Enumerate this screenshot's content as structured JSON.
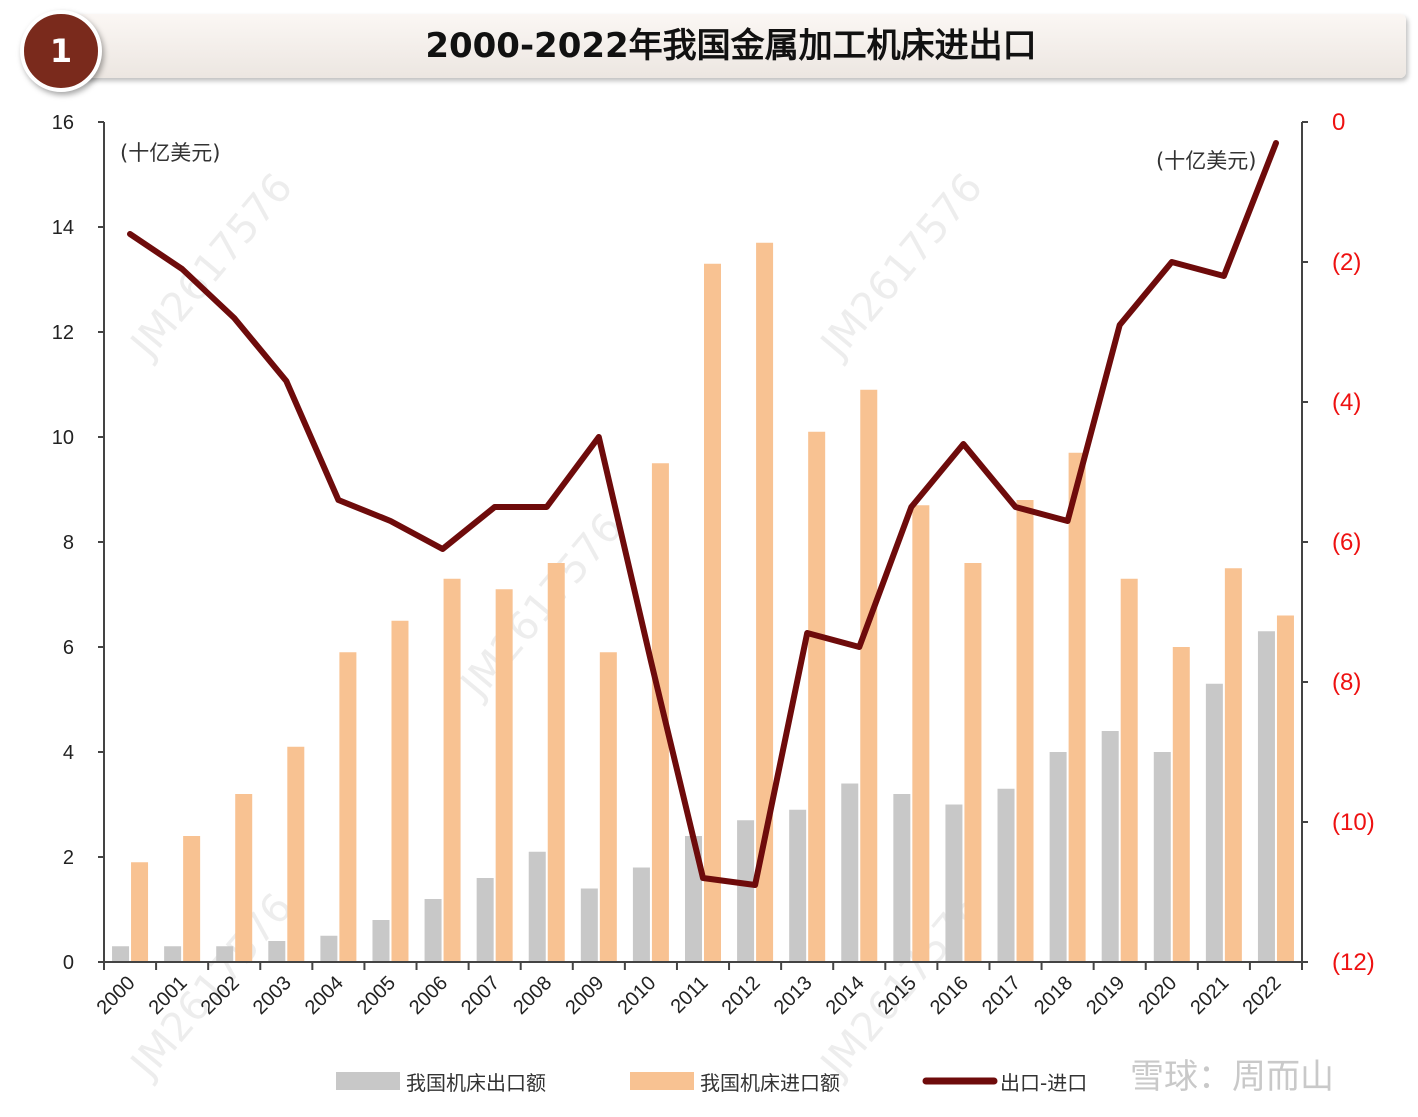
{
  "header": {
    "number": "1",
    "title": "2000-2022年我国金属加工机床进出口"
  },
  "chart_data": {
    "type": "bar+line",
    "title": "2000-2022年我国金属加工机床进出口",
    "categories": [
      "2000",
      "2001",
      "2002",
      "2003",
      "2004",
      "2005",
      "2006",
      "2007",
      "2008",
      "2009",
      "2010",
      "2011",
      "2012",
      "2013",
      "2014",
      "2015",
      "2016",
      "2017",
      "2018",
      "2019",
      "2020",
      "2021",
      "2022"
    ],
    "left_axis": {
      "unit_label": "(十亿美元)",
      "ylim": [
        0,
        16
      ],
      "ticks": [
        "0",
        "2",
        "4",
        "6",
        "8",
        "10",
        "12",
        "14",
        "16"
      ]
    },
    "right_axis": {
      "unit_label": "(十亿美元)",
      "ylim": [
        -12,
        0
      ],
      "ticks": [
        "0",
        "(2)",
        "(4)",
        "(6)",
        "(8)",
        "(10)",
        "(12)"
      ]
    },
    "series": [
      {
        "name": "我国机床出口额",
        "type": "bar",
        "axis": "left",
        "color": "#c8c8c8",
        "values": [
          0.3,
          0.3,
          0.3,
          0.4,
          0.5,
          0.8,
          1.2,
          1.6,
          2.1,
          1.4,
          1.8,
          2.4,
          2.7,
          2.9,
          3.4,
          3.2,
          3.0,
          3.3,
          4.0,
          4.4,
          4.0,
          5.3,
          6.3
        ]
      },
      {
        "name": "我国机床进口额",
        "type": "bar",
        "axis": "left",
        "color": "#f8c292",
        "values": [
          1.9,
          2.4,
          3.2,
          4.1,
          5.9,
          6.5,
          7.3,
          7.1,
          7.6,
          5.9,
          9.5,
          13.3,
          13.7,
          10.1,
          10.9,
          8.7,
          7.6,
          8.8,
          9.7,
          7.3,
          6.0,
          7.5,
          6.6
        ]
      },
      {
        "name": "出口-进口",
        "type": "line",
        "axis": "right",
        "color": "#6e0b0b",
        "values": [
          -1.6,
          -2.1,
          -2.8,
          -3.7,
          -5.4,
          -5.7,
          -6.1,
          -5.5,
          -5.5,
          -4.5,
          -7.7,
          -10.8,
          -10.9,
          -7.3,
          -7.5,
          -5.5,
          -4.6,
          -5.5,
          -5.7,
          -2.9,
          -2.0,
          -2.2,
          -0.3
        ]
      }
    ],
    "legend_position": "bottom"
  },
  "watermarks": [
    "JM2617576",
    "JM2617576",
    "JM2617576",
    "JM2617576",
    "JM2617576"
  ],
  "brand": "雪球：周而山",
  "colors": {
    "accent_dark": "#6e0b0b",
    "badge": "#7a2a1c",
    "right_axis_text": "#ee1111"
  }
}
